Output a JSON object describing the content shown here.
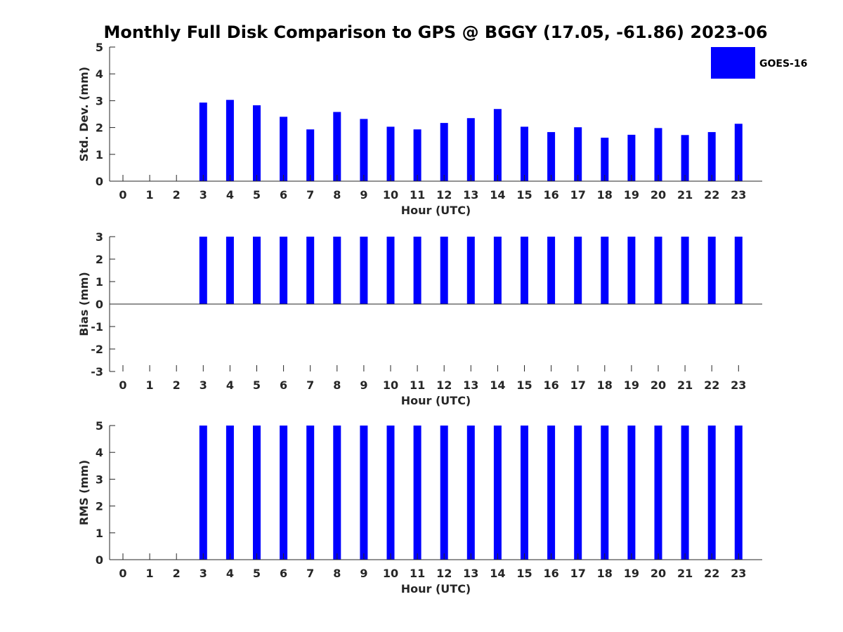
{
  "chart_data": {
    "title": "Monthly Full Disk Comparison to GPS @ BGGY (17.05, -61.86) 2023-06",
    "legend": {
      "label": "GOES-16",
      "color": "#0000ff",
      "placement": "top-right"
    },
    "panels": [
      {
        "type": "bar",
        "xlabel": "Hour (UTC)",
        "ylabel": "Std. Dev. (mm)",
        "ylim": [
          0,
          5
        ],
        "yticks": [
          "0",
          "1",
          "2",
          "3",
          "4",
          "5"
        ],
        "categories": [
          "0",
          "1",
          "2",
          "3",
          "4",
          "5",
          "6",
          "7",
          "8",
          "9",
          "10",
          "11",
          "12",
          "13",
          "14",
          "15",
          "16",
          "17",
          "18",
          "19",
          "20",
          "21",
          "22",
          "23"
        ],
        "values": [
          null,
          null,
          null,
          2.93,
          3.03,
          2.83,
          2.4,
          1.93,
          2.58,
          2.32,
          2.03,
          1.93,
          2.17,
          2.35,
          2.69,
          2.03,
          1.83,
          2.01,
          1.62,
          1.73,
          1.98,
          1.72,
          1.83,
          2.14
        ],
        "grid": false
      },
      {
        "type": "bar",
        "xlabel": "Hour (UTC)",
        "ylabel": "Bias (mm)",
        "ylim": [
          -3,
          3
        ],
        "yticks": [
          "-3",
          "-2",
          "-1",
          "0",
          "1",
          "2",
          "3"
        ],
        "categories": [
          "0",
          "1",
          "2",
          "3",
          "4",
          "5",
          "6",
          "7",
          "8",
          "9",
          "10",
          "11",
          "12",
          "13",
          "14",
          "15",
          "16",
          "17",
          "18",
          "19",
          "20",
          "21",
          "22",
          "23"
        ],
        "values": [
          null,
          null,
          null,
          3,
          3,
          3,
          3,
          3,
          3,
          3,
          3,
          3,
          3,
          3,
          3,
          3,
          3,
          3,
          3,
          3,
          3,
          3,
          3,
          3
        ],
        "grid": false
      },
      {
        "type": "bar",
        "xlabel": "Hour (UTC)",
        "ylabel": "RMS (mm)",
        "ylim": [
          0,
          5
        ],
        "yticks": [
          "0",
          "1",
          "2",
          "3",
          "4",
          "5"
        ],
        "categories": [
          "0",
          "1",
          "2",
          "3",
          "4",
          "5",
          "6",
          "7",
          "8",
          "9",
          "10",
          "11",
          "12",
          "13",
          "14",
          "15",
          "16",
          "17",
          "18",
          "19",
          "20",
          "21",
          "22",
          "23"
        ],
        "values": [
          null,
          null,
          null,
          5,
          5,
          5,
          5,
          5,
          5,
          5,
          5,
          5,
          5,
          5,
          5,
          5,
          5,
          5,
          5,
          5,
          5,
          5,
          5,
          5
        ],
        "grid": false
      }
    ]
  }
}
